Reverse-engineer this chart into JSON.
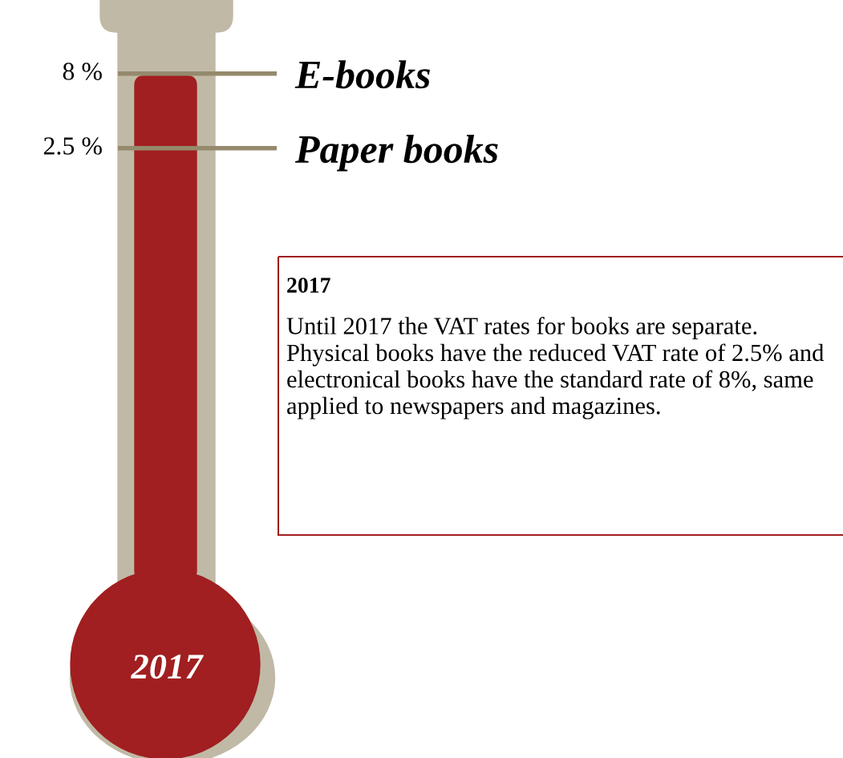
{
  "chart_data": {
    "type": "other",
    "categories": [
      "E-books",
      "Paper books"
    ],
    "values": [
      8,
      2.5
    ],
    "value_labels": [
      "8 %",
      "2.5 %"
    ],
    "color": "#a11f20",
    "annotations": [
      "2017",
      "2017",
      "Until 2017 the VAT rates for books are separate. Physical books have the reduced VAT rate of 2.5% and electronical books have the standard rate of 8%, same applied to newspapers and magazines."
    ]
  }
}
